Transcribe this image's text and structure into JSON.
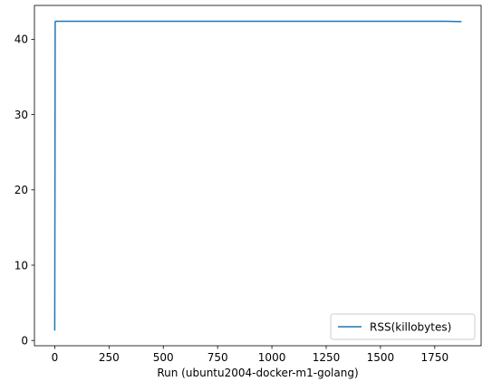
{
  "chart_data": {
    "type": "line",
    "title": "",
    "xlabel": "Run (ubuntu2004-docker-m1-golang)",
    "ylabel": "",
    "xlim": [
      -93.5,
      1963.5
    ],
    "ylim": [
      -0.7,
      44.5
    ],
    "xticks": [
      0,
      250,
      500,
      750,
      1000,
      1250,
      1500,
      1750
    ],
    "yticks": [
      0,
      10,
      20,
      30,
      40
    ],
    "grid": false,
    "legend_position": "lower-right",
    "series": [
      {
        "name": "RSS(killobytes)",
        "color": "#1f77b4",
        "x": [
          0,
          1,
          2,
          3,
          5,
          8,
          10,
          100,
          500,
          1000,
          1500,
          1800,
          1870
        ],
        "y": [
          1.4,
          20.0,
          42.2,
          42.4,
          42.4,
          42.4,
          42.4,
          42.4,
          42.4,
          42.4,
          42.4,
          42.4,
          42.35
        ]
      }
    ]
  }
}
